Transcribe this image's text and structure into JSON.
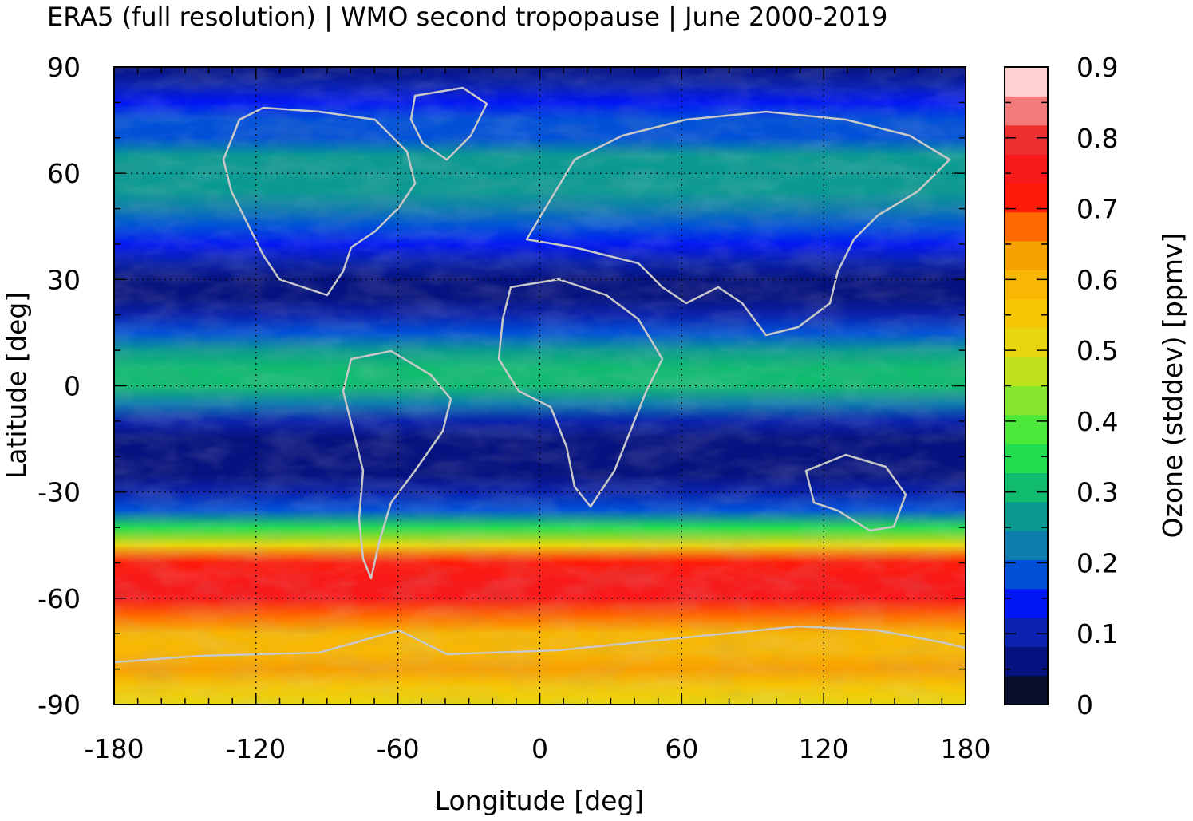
{
  "chart_data": {
    "type": "heatmap",
    "title": "ERA5 (full resolution) | WMO second tropopause | June 2000-2019",
    "xlabel": "Longitude [deg]",
    "ylabel": "Latitude [deg]",
    "colorbar_label": "Ozone (stddev) [ppmv]",
    "xlim": [
      -180,
      180
    ],
    "ylim": [
      -90,
      90
    ],
    "xticks": [
      -180,
      -120,
      -60,
      0,
      60,
      120,
      180
    ],
    "xtick_labels": [
      "-180",
      "-120",
      "-60",
      "0",
      "60",
      "120",
      "180"
    ],
    "yticks": [
      -90,
      -60,
      -30,
      0,
      30,
      60,
      90
    ],
    "ytick_labels": [
      "-90",
      "-60",
      "-30",
      "0",
      "30",
      "60",
      "90"
    ],
    "colorbar_range": [
      0,
      0.9
    ],
    "colorbar_ticks": [
      0,
      0.1,
      0.2,
      0.3,
      0.4,
      0.5,
      0.6,
      0.7,
      0.8,
      0.9
    ],
    "colorbar_tick_labels": [
      "0",
      "0.1",
      "0.2",
      "0.3",
      "0.4",
      "0.5",
      "0.6",
      "0.7",
      "0.8",
      "0.9"
    ],
    "colorbar_levels": [
      "#0b0f2e",
      "#06127f",
      "#0a22ad",
      "#0016f4",
      "#0050d8",
      "#0f7dae",
      "#0a9a92",
      "#10bb70",
      "#22dd50",
      "#4ce83a",
      "#86e62d",
      "#c0e11d",
      "#e8d60e",
      "#f5c605",
      "#f7b702",
      "#f7a002",
      "#ff6a00",
      "#ff1a0a",
      "#f81a1a",
      "#ee3030",
      "#f27a7a",
      "#ffd0d0"
    ],
    "grid": true,
    "zonal_profile": {
      "lat": [
        90,
        85,
        80,
        75,
        70,
        65,
        60,
        55,
        50,
        45,
        40,
        35,
        30,
        25,
        20,
        15,
        10,
        5,
        0,
        -5,
        -10,
        -15,
        -20,
        -25,
        -30,
        -35,
        -40,
        -45,
        -50,
        -55,
        -60,
        -65,
        -70,
        -75,
        -80,
        -85,
        -90
      ],
      "ozone_stddev": [
        0.06,
        0.1,
        0.13,
        0.17,
        0.2,
        0.25,
        0.27,
        0.26,
        0.22,
        0.18,
        0.14,
        0.1,
        0.07,
        0.06,
        0.1,
        0.18,
        0.26,
        0.3,
        0.3,
        0.24,
        0.1,
        0.06,
        0.06,
        0.08,
        0.12,
        0.2,
        0.35,
        0.52,
        0.7,
        0.75,
        0.76,
        0.68,
        0.6,
        0.6,
        0.62,
        0.54,
        0.5
      ]
    }
  }
}
